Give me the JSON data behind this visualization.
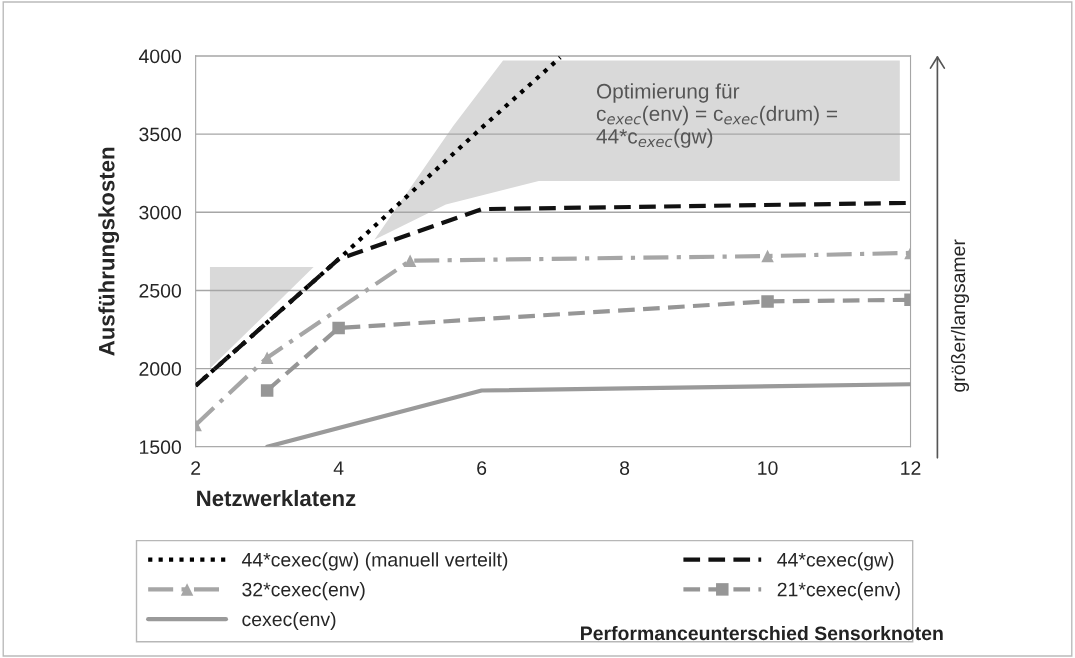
{
  "chart_data": {
    "type": "line",
    "xlabel": "Netzwerklatenz",
    "ylabel": "Ausführungskosten",
    "xlim": [
      2,
      12
    ],
    "xticks": [
      2,
      4,
      6,
      8,
      10,
      12
    ],
    "ylim": [
      1500,
      4000
    ],
    "yticks": [
      1500,
      2000,
      2500,
      3000,
      3500,
      4000
    ],
    "grid": "y",
    "legend": "bottom",
    "series": [
      {
        "name": "44*cexec(gw) (manuell verteilt)",
        "color": "#000000",
        "line_style": "dotted",
        "marker": "none",
        "x": [
          2,
          4,
          6,
          7.1
        ],
        "values": [
          1890,
          2700,
          3540,
          3990
        ]
      },
      {
        "name": "44*cexec(gw)",
        "color": "#111111",
        "line_style": "dashed",
        "marker": "none",
        "x": [
          2,
          4,
          6,
          12
        ],
        "values": [
          1890,
          2700,
          3020,
          3060
        ]
      },
      {
        "name": "32*cexec(env)",
        "color": "#a6a6a6",
        "line_style": "dashdot",
        "marker": "triangle",
        "x": [
          2,
          3,
          5,
          10,
          12
        ],
        "values": [
          1640,
          2070,
          2690,
          2720,
          2740
        ]
      },
      {
        "name": "21*cexec(env)",
        "color": "#969696",
        "line_style": "dashed",
        "marker": "square",
        "x": [
          3,
          4,
          10,
          12
        ],
        "values": [
          1860,
          2260,
          2430,
          2440
        ]
      },
      {
        "name": "cexec(env)",
        "color": "#9a9a9a",
        "line_style": "solid",
        "marker": "none",
        "x": [
          3,
          6,
          12
        ],
        "values": [
          1500,
          1860,
          1900
        ]
      }
    ],
    "annotations": [
      "Optimierung für\nc$_{exec}$(env) = c$_{exec}$(drum) =\n44*c$_{exec}$(gw)",
      "größer/langsamer",
      "Performanceunterschied Sensorknoten"
    ]
  }
}
